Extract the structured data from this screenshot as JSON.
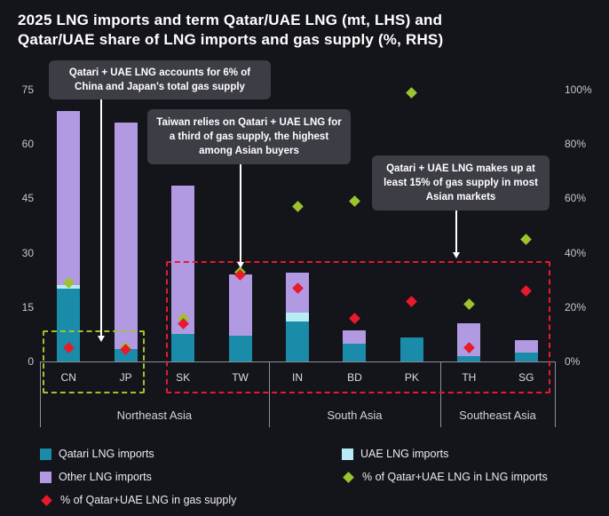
{
  "title": {
    "line1": "2025 LNG imports and term Qatar/UAE LNG (mt, LHS) and",
    "line2": "Qatar/UAE share of LNG imports and gas supply (%, RHS)"
  },
  "colors": {
    "background": "#14141b",
    "qatari": "#1a8ba8",
    "uae": "#b8ecf4",
    "other": "#b29ae2",
    "green": "#9cc42e",
    "red": "#e81a2c",
    "annotation_bg": "#3d3d46"
  },
  "chart_data": {
    "type": "bar",
    "stacked": true,
    "categories": [
      "CN",
      "JP",
      "SK",
      "TW",
      "IN",
      "BD",
      "PK",
      "TH",
      "SG"
    ],
    "groups": [
      {
        "label": "Northeast Asia",
        "from": 0,
        "to": 3
      },
      {
        "label": "South Asia",
        "from": 4,
        "to": 6
      },
      {
        "label": "Southeast Asia",
        "from": 7,
        "to": 8
      }
    ],
    "series": [
      {
        "name": "Qatari LNG imports",
        "key": "qatari",
        "values": [
          20,
          3.5,
          7.5,
          7,
          11,
          5,
          6.5,
          1.5,
          2.5
        ]
      },
      {
        "name": "UAE LNG imports",
        "key": "uae",
        "values": [
          1,
          0,
          0,
          0,
          2.5,
          0,
          0,
          0,
          0
        ]
      },
      {
        "name": "Other LNG imports",
        "key": "other",
        "values": [
          48,
          62.5,
          41,
          17,
          11,
          3.5,
          0,
          9,
          3.5
        ]
      }
    ],
    "points": [
      {
        "name": "% of Qatar+UAE LNG in LNG imports",
        "key": "green",
        "axis": "right",
        "values": [
          29,
          5,
          16,
          33,
          57,
          59,
          99,
          21,
          45
        ]
      },
      {
        "name": "% of Qatar+UAE LNG in gas supply",
        "key": "red",
        "axis": "right",
        "values": [
          5,
          4.5,
          14,
          32,
          27,
          16,
          22,
          5,
          26
        ]
      }
    ],
    "y_left": {
      "min": 0,
      "max": 75,
      "ticks": [
        0,
        15,
        30,
        45,
        60,
        75
      ]
    },
    "y_right": {
      "min": 0,
      "max": 100,
      "ticks": [
        0,
        20,
        40,
        60,
        80,
        100
      ],
      "suffix": "%"
    },
    "legend_position": "bottom",
    "grid": false
  },
  "annotations": [
    {
      "text": "Qatari + UAE LNG accounts for 6% of China and Japan's total gas supply"
    },
    {
      "text": "Taiwan relies on Qatari + UAE LNG for a third of gas supply, the highest among Asian buyers"
    },
    {
      "text": "Qatari + UAE LNG makes up at least 15% of gas supply in most Asian markets"
    }
  ],
  "legend": [
    {
      "label": "Qatari LNG imports",
      "marker": "square",
      "color_key": "qatari"
    },
    {
      "label": "UAE LNG imports",
      "marker": "square",
      "color_key": "uae"
    },
    {
      "label": "Other LNG imports",
      "marker": "square",
      "color_key": "other"
    },
    {
      "label": "% of Qatar+UAE LNG in LNG imports",
      "marker": "diamond",
      "color_key": "green"
    },
    {
      "label": "% of Qatar+UAE LNG in gas supply",
      "marker": "diamond",
      "color_key": "red"
    }
  ]
}
